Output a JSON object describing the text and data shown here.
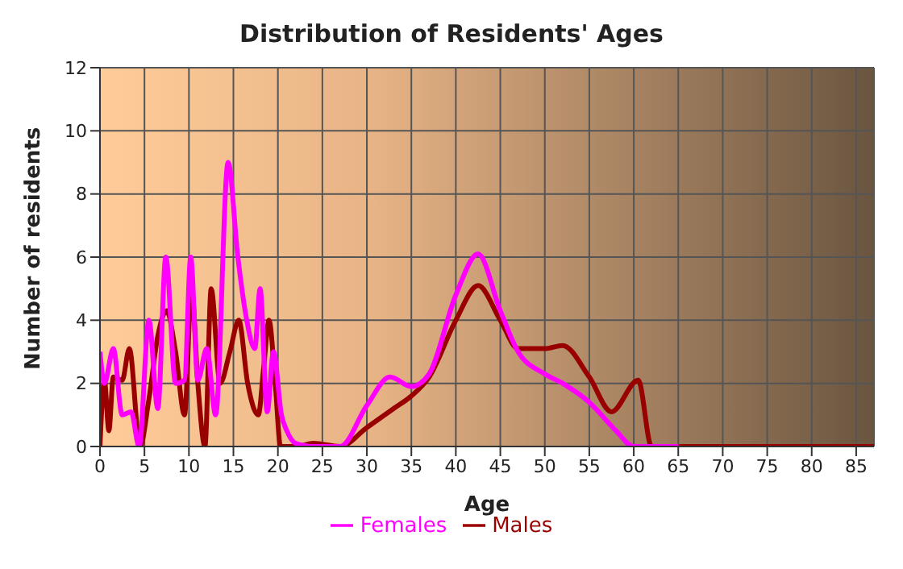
{
  "chart_data": {
    "type": "line",
    "title": "Distribution of Residents' Ages",
    "xlabel": "Age",
    "ylabel": "Number of residents",
    "series": [
      {
        "name": "Males",
        "color": "#990000",
        "x": [
          0,
          0.5,
          1,
          1.5,
          2.5,
          3.3,
          4.5,
          5.5,
          6.5,
          7.5,
          8.5,
          9.5,
          10.3,
          11,
          11.8,
          12.5,
          13.5,
          14.6,
          15.6,
          16.6,
          17.8,
          18.4,
          19,
          19.7,
          20.3,
          21,
          22,
          24,
          27,
          30,
          33,
          35,
          37,
          40,
          42.5,
          45,
          47,
          50,
          52,
          55,
          57.5,
          60.5,
          62,
          65,
          70,
          75,
          80,
          87
        ],
        "values": [
          0,
          2.1,
          0.5,
          2.2,
          2.1,
          3.1,
          0,
          1.5,
          3.5,
          4.3,
          3,
          1,
          5,
          2,
          0,
          5,
          2,
          3,
          4,
          2,
          1,
          2.5,
          4,
          2,
          0,
          0,
          0,
          0.1,
          0,
          0.6,
          1.2,
          1.6,
          2.2,
          4,
          5.1,
          4,
          3.1,
          3.1,
          3.2,
          2.2,
          1.1,
          2.1,
          0,
          0,
          0,
          0,
          0,
          0
        ]
      },
      {
        "name": "Females",
        "color": "#ff00ff",
        "x": [
          0,
          0.5,
          1.5,
          2.5,
          3.5,
          4.4,
          5.5,
          6.5,
          7.4,
          8.5,
          9.5,
          10.2,
          11,
          12,
          13,
          14.4,
          15.5,
          16.5,
          17.4,
          18,
          18.8,
          19.5,
          20.4,
          21,
          22,
          24,
          27,
          30,
          32.6,
          35,
          37,
          40,
          42.5,
          45,
          47,
          50,
          52,
          55,
          58,
          60,
          65
        ],
        "values": [
          3,
          2,
          3.1,
          1,
          1.1,
          0,
          4,
          1.2,
          6,
          2,
          2.1,
          6,
          2.1,
          3.1,
          1,
          9,
          6,
          4,
          3.1,
          5,
          1.1,
          3,
          1,
          0.5,
          0.1,
          0,
          0,
          1.3,
          2.2,
          1.9,
          2.3,
          4.8,
          6.1,
          4.3,
          3,
          2.3,
          2,
          1.4,
          0.5,
          0,
          0
        ]
      }
    ],
    "xlim": [
      0,
      87
    ],
    "xticks": [
      0,
      5,
      10,
      15,
      20,
      25,
      30,
      35,
      40,
      45,
      50,
      55,
      60,
      65,
      70,
      75,
      80,
      85
    ],
    "ylim": [
      0,
      12
    ],
    "yticks": [
      0,
      2,
      4,
      6,
      8,
      10,
      12
    ],
    "grid": true,
    "legend": "bottom",
    "marker": "none",
    "line_style": "solid"
  }
}
